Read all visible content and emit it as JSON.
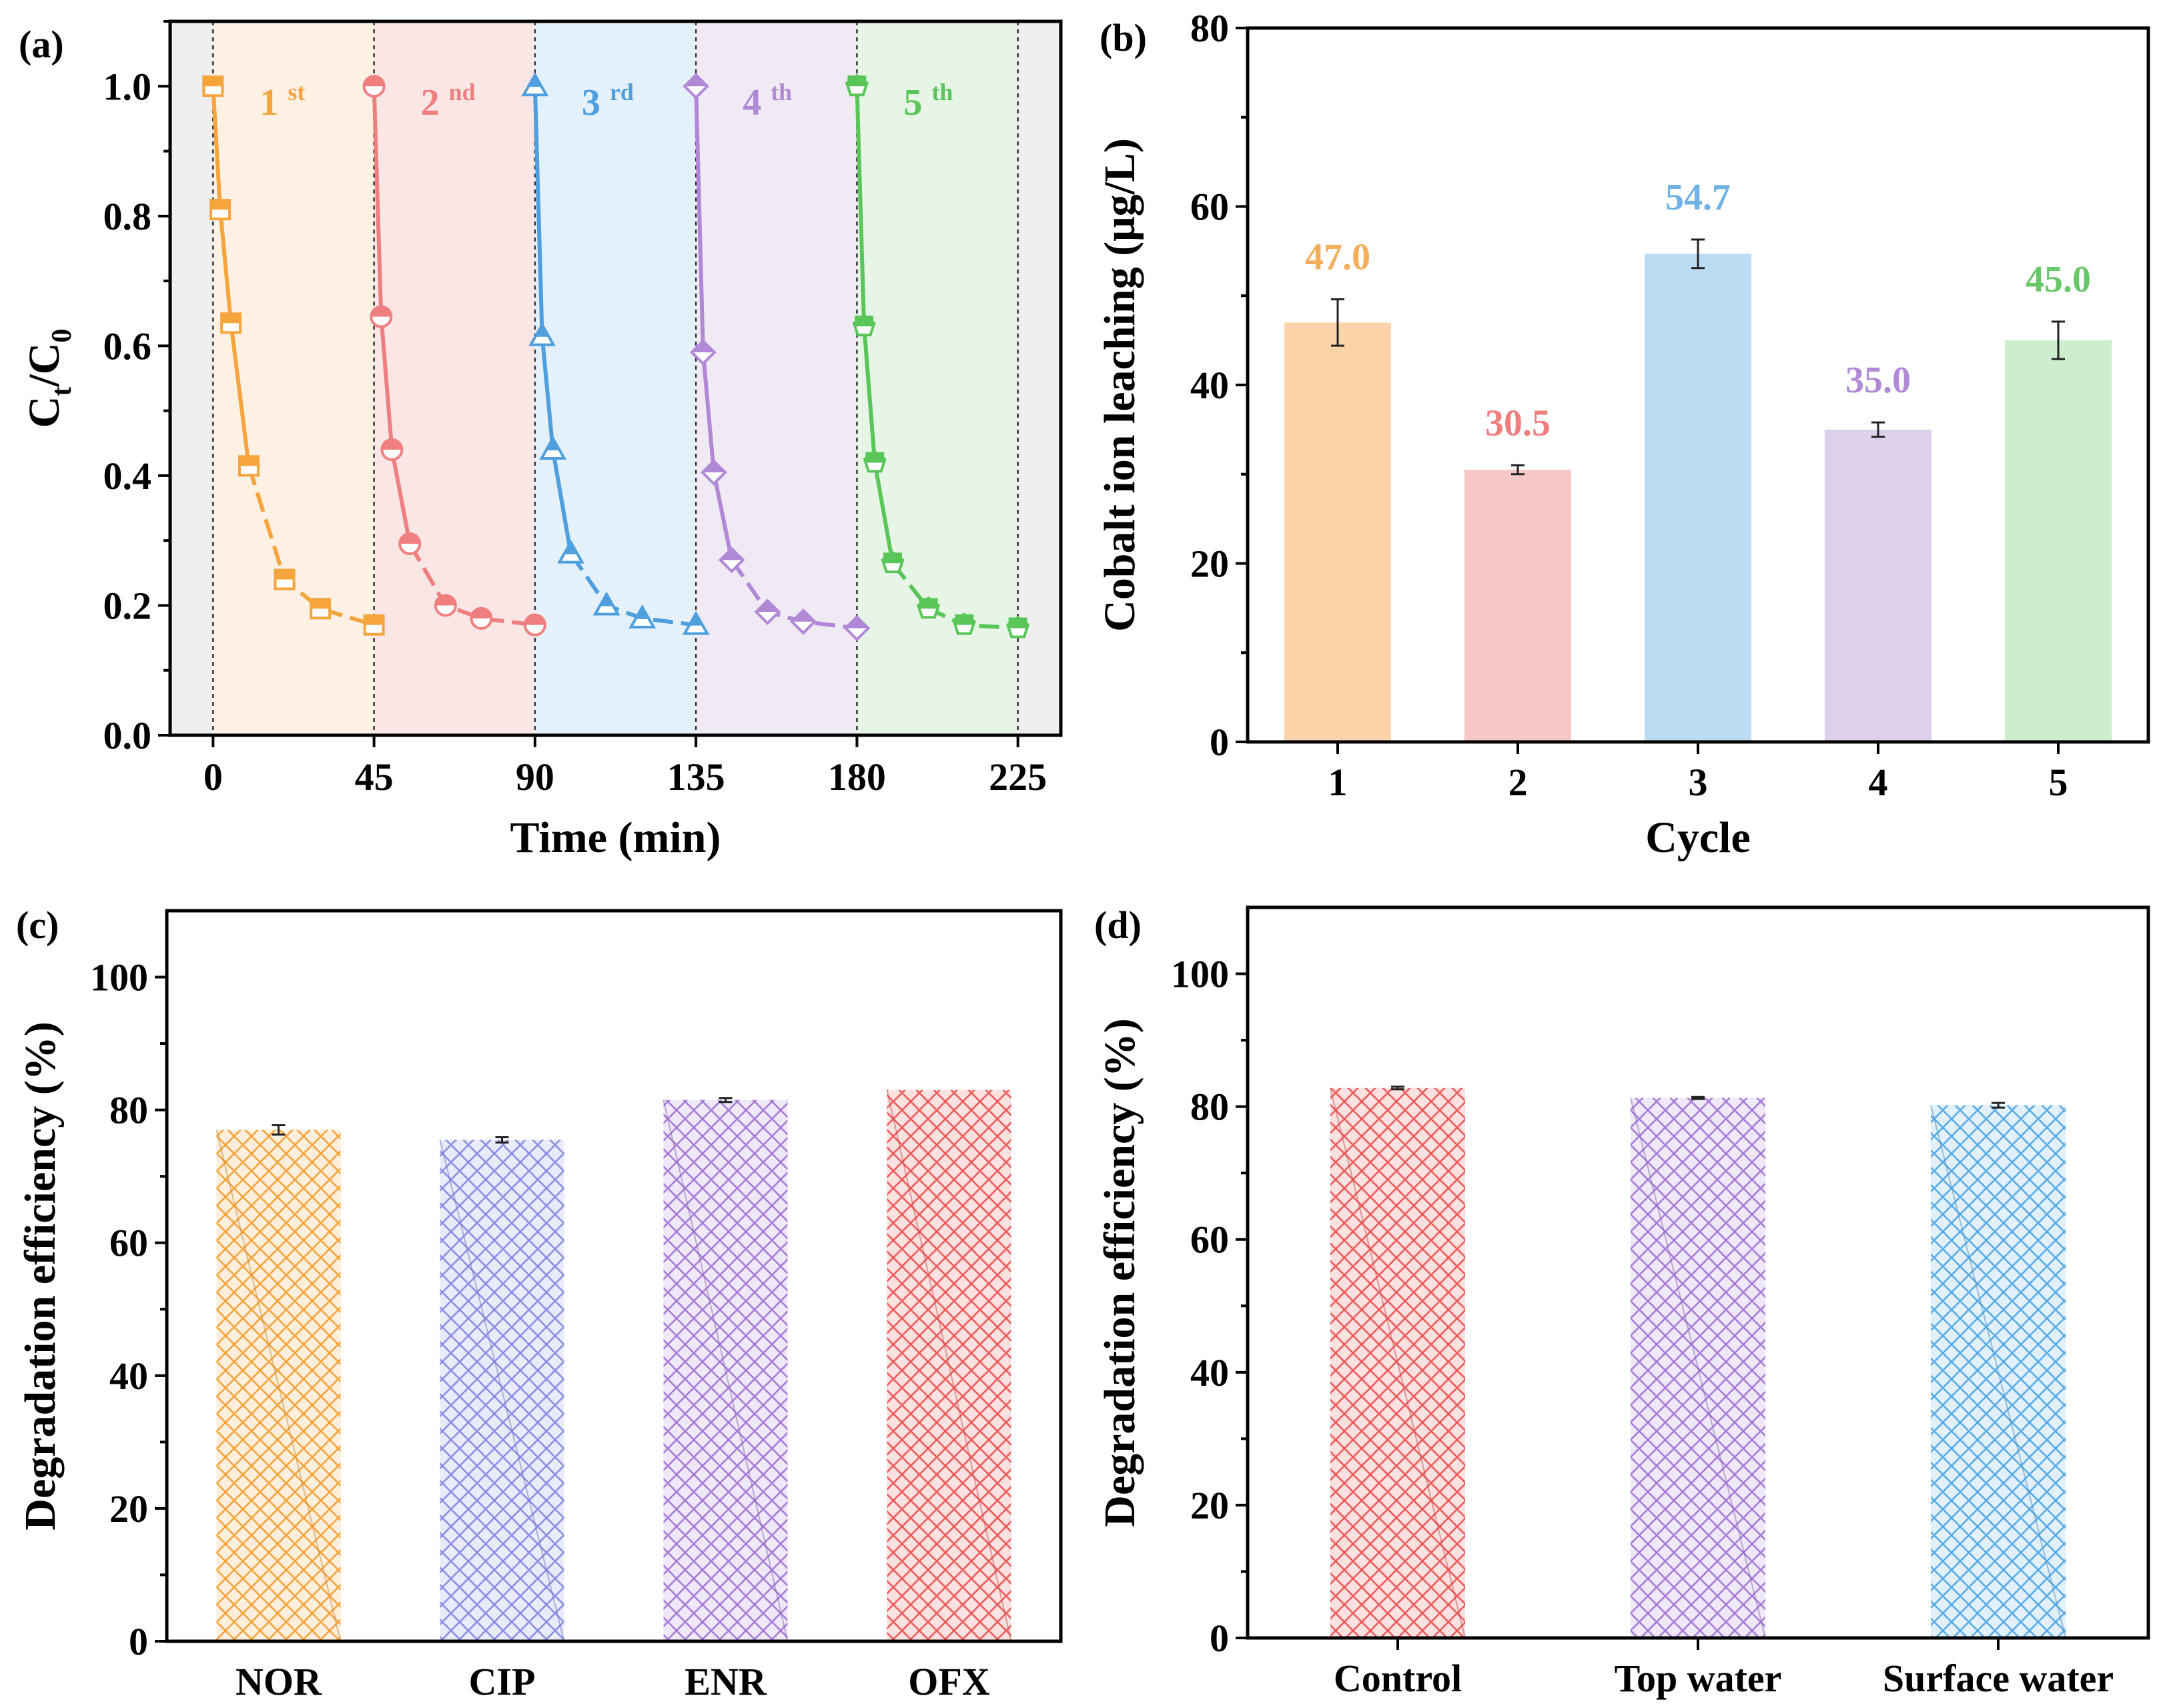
{
  "chart_data": [
    {
      "id": "a",
      "panel_label": "(a)",
      "type": "line",
      "xlabel": "Time (min)",
      "ylabel_main": "C",
      "ylabel_sub1": "t",
      "ylabel_mid": "/C",
      "ylabel_sub2": "0",
      "xlim": [
        -12,
        237
      ],
      "ylim": [
        0,
        1.1
      ],
      "xticks": [
        0,
        45,
        90,
        135,
        180,
        225
      ],
      "xtick_labels": [
        "0",
        "45",
        "90",
        "135",
        "180",
        "225"
      ],
      "yticks": [
        0,
        0.2,
        0.4,
        0.6,
        0.8,
        1.0
      ],
      "ytick_labels": [
        "0.0",
        "0.2",
        "0.4",
        "0.6",
        "0.8",
        "1.0"
      ],
      "regions": [
        {
          "x0": -12,
          "x1": 0,
          "color": "#efefef"
        },
        {
          "x0": 0,
          "x1": 45,
          "color": "#fdf1e4"
        },
        {
          "x0": 45,
          "x1": 90,
          "color": "#fbe6e6"
        },
        {
          "x0": 90,
          "x1": 135,
          "color": "#e4f0fa"
        },
        {
          "x0": 135,
          "x1": 180,
          "color": "#f0eaf4"
        },
        {
          "x0": 180,
          "x1": 225,
          "color": "#e6f5e6"
        },
        {
          "x0": 225,
          "x1": 237,
          "color": "#efefef"
        }
      ],
      "series": [
        {
          "name": "1st",
          "label_num": "1",
          "label_sup": "st",
          "color": "#f6a43c",
          "marker": "square",
          "x": [
            0,
            2,
            5,
            10,
            20,
            30,
            45
          ],
          "y": [
            1.0,
            0.81,
            0.635,
            0.415,
            0.24,
            0.195,
            0.17
          ]
        },
        {
          "name": "2nd",
          "label_num": "2",
          "label_sup": "nd",
          "color": "#ef7f7f",
          "marker": "circle",
          "x": [
            45,
            47,
            50,
            55,
            65,
            75,
            90
          ],
          "y": [
            1.0,
            0.645,
            0.44,
            0.295,
            0.2,
            0.18,
            0.17
          ]
        },
        {
          "name": "3rd",
          "label_num": "3",
          "label_sup": "rd",
          "color": "#4f9fde",
          "marker": "triangle",
          "x": [
            90,
            92,
            95,
            100,
            110,
            120,
            135
          ],
          "y": [
            1.0,
            0.615,
            0.44,
            0.28,
            0.2,
            0.18,
            0.17
          ]
        },
        {
          "name": "4th",
          "label_num": "4",
          "label_sup": "th",
          "color": "#b088d6",
          "marker": "diamond",
          "x": [
            135,
            137,
            140,
            145,
            155,
            165,
            180
          ],
          "y": [
            1.0,
            0.59,
            0.405,
            0.27,
            0.19,
            0.175,
            0.165
          ]
        },
        {
          "name": "5th",
          "label_num": "5",
          "label_sup": "th",
          "color": "#5ac65a",
          "marker": "pentagon",
          "x": [
            180,
            182,
            185,
            190,
            200,
            210,
            225
          ],
          "y": [
            1.0,
            0.63,
            0.42,
            0.265,
            0.195,
            0.17,
            0.165
          ]
        }
      ]
    },
    {
      "id": "b",
      "panel_label": "(b)",
      "type": "bar",
      "xlabel": "Cycle",
      "ylabel": "Cobalt ion leaching (μg/L)",
      "categories": [
        "1",
        "2",
        "3",
        "4",
        "5"
      ],
      "values": [
        47.0,
        30.5,
        54.7,
        35.0,
        45.0
      ],
      "value_labels": [
        "47.0",
        "30.5",
        "54.7",
        "35.0",
        "45.0"
      ],
      "errors": [
        2.6,
        0.5,
        1.6,
        0.8,
        2.1
      ],
      "colors": [
        "#fbd3a9",
        "#f8c8c8",
        "#bcdcf3",
        "#ddd0ea",
        "#cdeecd"
      ],
      "label_colors": [
        "#f6ad59",
        "#ef7f7f",
        "#6fb2e3",
        "#b08ad6",
        "#68c868"
      ],
      "ylim": [
        0,
        80
      ],
      "yticks": [
        0,
        20,
        40,
        60,
        80
      ],
      "ytick_labels": [
        "0",
        "20",
        "40",
        "60",
        "80"
      ]
    },
    {
      "id": "c",
      "panel_label": "(c)",
      "type": "bar",
      "xlabel": "",
      "ylabel": "Degradation efficiency (%)",
      "categories": [
        "NOR",
        "CIP",
        "ENR",
        "OFX"
      ],
      "values": [
        77.0,
        75.5,
        81.5,
        83.0
      ],
      "errors": [
        0.7,
        0.4,
        0.3,
        0.0
      ],
      "colors": [
        "#f6a43c",
        "#8b8fe6",
        "#a77dd8",
        "#ef5b5b"
      ],
      "ylim": [
        0,
        110
      ],
      "yticks": [
        0,
        20,
        40,
        60,
        80,
        100
      ],
      "ytick_labels": [
        "0",
        "20",
        "40",
        "60",
        "80",
        "100"
      ]
    },
    {
      "id": "d",
      "panel_label": "(d)",
      "type": "bar",
      "xlabel": "",
      "ylabel": "Degradation efficiency (%)",
      "categories": [
        "Control",
        "Top water",
        "Surface water"
      ],
      "values": [
        82.8,
        81.3,
        80.2
      ],
      "errors": [
        0.2,
        0.15,
        0.35
      ],
      "colors": [
        "#ef5b5b",
        "#a77dd8",
        "#5aace8"
      ],
      "ylim": [
        0,
        110
      ],
      "yticks": [
        0,
        20,
        40,
        60,
        80,
        100
      ],
      "ytick_labels": [
        "0",
        "20",
        "40",
        "60",
        "80",
        "100"
      ]
    }
  ]
}
